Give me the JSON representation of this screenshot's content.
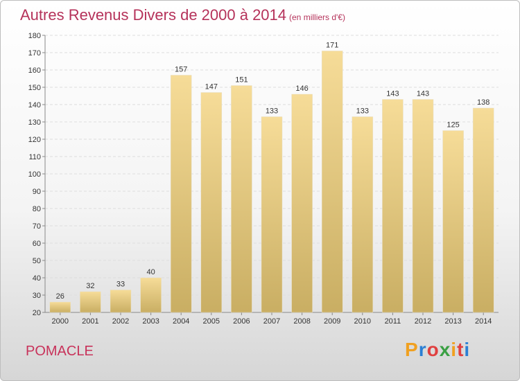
{
  "title": "Autres Revenus Divers de 2000 à 2014",
  "subtitle": "(en milliers d'€)",
  "place": "POMACLE",
  "logo": {
    "letters": [
      "P",
      "r",
      "o",
      "x",
      "i",
      "t",
      "i"
    ],
    "colors": [
      "#f0a020",
      "#2a7fd4",
      "#e04040",
      "#3aa043",
      "#f0a020",
      "#e04040",
      "#2a7fd4"
    ]
  },
  "colors": {
    "bar_top": "#f6dc98",
    "bar_bottom": "#c9ae63",
    "title": "#b5325a"
  },
  "chart_data": {
    "type": "bar",
    "categories": [
      "2000",
      "2001",
      "2002",
      "2003",
      "2004",
      "2005",
      "2006",
      "2007",
      "2008",
      "2009",
      "2010",
      "2011",
      "2012",
      "2013",
      "2014"
    ],
    "values": [
      26,
      32,
      33,
      40,
      157,
      147,
      151,
      133,
      146,
      171,
      133,
      143,
      143,
      125,
      138
    ],
    "title": "Autres Revenus Divers de 2000 à 2014",
    "subtitle": "(en milliers d'€)",
    "ylim": [
      20,
      180
    ],
    "yticks": [
      20,
      30,
      40,
      50,
      60,
      70,
      80,
      90,
      100,
      110,
      120,
      130,
      140,
      150,
      160,
      170,
      180
    ],
    "grid": true
  }
}
